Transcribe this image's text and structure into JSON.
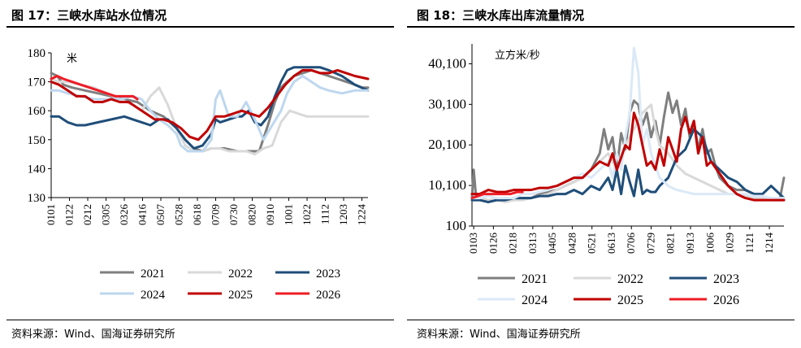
{
  "left_panel": {
    "title": "图 17：三峡水库站水位情况",
    "source": "资料来源：Wind、国海证券研究所",
    "chart_data": {
      "type": "line",
      "ylabel": "米",
      "ylim": [
        130,
        180
      ],
      "yticks": [
        130,
        140,
        150,
        160,
        170,
        180
      ],
      "xlim": [
        1,
        365
      ],
      "xtick_labels": [
        "0101",
        "0122",
        "0212",
        "0305",
        "0326",
        "0416",
        "0507",
        "0528",
        "0618",
        "0709",
        "0730",
        "0820",
        "0910",
        "1001",
        "1022",
        "1112",
        "1203",
        "1224"
      ],
      "xtick_days": [
        1,
        22,
        43,
        64,
        85,
        106,
        127,
        148,
        169,
        190,
        211,
        232,
        253,
        274,
        295,
        316,
        337,
        358
      ],
      "legend_position": "bottom",
      "grid": false,
      "series": [
        {
          "name": "2021",
          "color": "#7f7f7f",
          "width": 3,
          "x": [
            1,
            8,
            15,
            25,
            40,
            55,
            70,
            85,
            100,
            115,
            130,
            145,
            155,
            165,
            175,
            185,
            200,
            215,
            230,
            240,
            250,
            258,
            265,
            272,
            280,
            290,
            300,
            310,
            320,
            330,
            340,
            350,
            358,
            365
          ],
          "y": [
            173,
            172,
            169,
            168,
            167,
            166,
            165,
            164,
            163,
            160,
            158,
            154,
            150,
            147,
            146,
            147,
            147,
            146,
            146,
            146,
            155,
            163,
            168,
            170,
            172,
            173,
            174,
            173,
            172,
            171,
            170,
            169,
            168,
            168
          ]
        },
        {
          "name": "2022",
          "color": "#d9d9d9",
          "width": 3,
          "x": [
            1,
            10,
            20,
            35,
            50,
            65,
            80,
            95,
            105,
            115,
            125,
            135,
            145,
            155,
            165,
            175,
            185,
            195,
            205,
            215,
            225,
            235,
            245,
            255,
            265,
            275,
            285,
            295,
            305,
            320,
            335,
            350,
            365
          ],
          "y": [
            171,
            170,
            170,
            169,
            168,
            166,
            164,
            162,
            160,
            165,
            168,
            162,
            154,
            148,
            146,
            146,
            147,
            147,
            146,
            146,
            146,
            145,
            147,
            148,
            156,
            160,
            159,
            158,
            158,
            158,
            158,
            158,
            158
          ]
        },
        {
          "name": "2023",
          "color": "#1f4e79",
          "width": 3,
          "x": [
            1,
            10,
            15,
            20,
            30,
            40,
            55,
            70,
            85,
            95,
            105,
            115,
            125,
            135,
            145,
            155,
            165,
            175,
            185,
            190,
            195,
            205,
            215,
            220,
            228,
            235,
            242,
            250,
            258,
            265,
            272,
            280,
            290,
            300,
            310,
            320,
            335,
            350,
            365
          ],
          "y": [
            158,
            158,
            157,
            156,
            155,
            155,
            156,
            157,
            158,
            157,
            156,
            155,
            157,
            157,
            154,
            150,
            147,
            148,
            152,
            157,
            156,
            157,
            158,
            158,
            160,
            156,
            155,
            158,
            165,
            170,
            174,
            175,
            175,
            175,
            175,
            174,
            172,
            169,
            167
          ]
        },
        {
          "name": "2024",
          "color": "#bdd7ee",
          "width": 3,
          "x": [
            1,
            10,
            20,
            35,
            50,
            65,
            80,
            95,
            105,
            115,
            125,
            135,
            145,
            150,
            158,
            165,
            175,
            185,
            190,
            195,
            205,
            215,
            225,
            235,
            245,
            255,
            265,
            272,
            280,
            290,
            300,
            310,
            320,
            335,
            350,
            365
          ],
          "y": [
            167,
            167,
            166,
            165,
            164,
            164,
            164,
            165,
            164,
            160,
            157,
            155,
            152,
            148,
            146,
            146,
            146,
            150,
            164,
            167,
            158,
            158,
            163,
            157,
            150,
            155,
            160,
            166,
            170,
            172,
            170,
            168,
            167,
            166,
            167,
            167
          ]
        },
        {
          "name": "2025",
          "color": "#c00000",
          "width": 3,
          "x": [
            1,
            10,
            20,
            30,
            40,
            50,
            60,
            70,
            80,
            90,
            100,
            110,
            120,
            130,
            140,
            150,
            160,
            170,
            180,
            190,
            200,
            210,
            220,
            230,
            240,
            250,
            260,
            270,
            280,
            290,
            300,
            310,
            320,
            330,
            340,
            350,
            365
          ],
          "y": [
            170,
            169,
            167,
            165,
            165,
            163,
            163,
            164,
            163,
            163,
            161,
            159,
            157,
            157,
            156,
            154,
            151,
            150,
            153,
            158,
            158,
            159,
            160,
            159,
            158,
            161,
            165,
            169,
            172,
            174,
            174,
            173,
            173,
            174,
            173,
            172,
            171
          ]
        },
        {
          "name": "2026",
          "color": "#ee1c25",
          "width": 3,
          "x": [
            1,
            8,
            15,
            25,
            35,
            45,
            55,
            65,
            75,
            85,
            95,
            100
          ],
          "y": [
            171,
            172,
            171,
            170,
            169,
            168,
            167,
            166,
            165,
            165,
            165,
            164
          ]
        }
      ]
    }
  },
  "right_panel": {
    "title": "图 18：三峡水库出库流量情况",
    "source": "资料来源：Wind、国海证券研究所",
    "chart_data": {
      "type": "line",
      "ylabel": "立方米/秒",
      "ylim": [
        100,
        45000
      ],
      "yticks": [
        100,
        10100,
        20100,
        30100,
        40100
      ],
      "ytick_labels": [
        "100",
        "10,100",
        "20,100",
        "30,100",
        "40,100"
      ],
      "xlim": [
        1,
        365
      ],
      "xtick_labels": [
        "0103",
        "0126",
        "0218",
        "0313",
        "0405",
        "0428",
        "0521",
        "0613",
        "0706",
        "0729",
        "0821",
        "0913",
        "1006",
        "1029",
        "1121",
        "1214"
      ],
      "xtick_days": [
        3,
        26,
        49,
        72,
        95,
        118,
        141,
        164,
        187,
        210,
        233,
        256,
        279,
        302,
        325,
        348
      ],
      "legend_position": "bottom",
      "grid": false,
      "series": [
        {
          "name": "2021",
          "color": "#7f7f7f",
          "width": 3,
          "x": [
            1,
            3,
            6,
            10,
            20,
            30,
            40,
            50,
            60,
            70,
            80,
            90,
            100,
            110,
            120,
            130,
            140,
            150,
            155,
            160,
            165,
            170,
            175,
            180,
            185,
            190,
            195,
            200,
            205,
            210,
            215,
            220,
            225,
            230,
            235,
            240,
            245,
            250,
            255,
            260,
            265,
            270,
            275,
            280,
            285,
            290,
            300,
            310,
            320,
            330,
            340,
            350,
            360,
            365
          ],
          "y": [
            7000,
            14000,
            6500,
            7000,
            6500,
            6500,
            7000,
            6500,
            7000,
            7000,
            8000,
            8500,
            9000,
            10000,
            11000,
            12000,
            14000,
            18000,
            24000,
            19000,
            22000,
            14000,
            23000,
            19000,
            28000,
            31000,
            30000,
            25000,
            28000,
            22000,
            26000,
            20000,
            27000,
            33000,
            28000,
            31000,
            25000,
            29000,
            22000,
            26000,
            19000,
            24000,
            18000,
            19000,
            15000,
            12000,
            10000,
            9000,
            9000,
            8000,
            7000,
            7000,
            6500,
            12000
          ]
        },
        {
          "name": "2022",
          "color": "#d9d9d9",
          "width": 3,
          "x": [
            1,
            10,
            20,
            30,
            40,
            50,
            60,
            70,
            80,
            90,
            100,
            110,
            120,
            130,
            140,
            150,
            160,
            170,
            180,
            190,
            200,
            210,
            215,
            220,
            230,
            240,
            250,
            260,
            270,
            280,
            290,
            300,
            310,
            320,
            330,
            340,
            350,
            365
          ],
          "y": [
            7000,
            7000,
            6500,
            6500,
            6000,
            6500,
            6500,
            7000,
            7500,
            8000,
            9000,
            10000,
            11000,
            12000,
            14000,
            16000,
            18000,
            14000,
            20000,
            24000,
            28000,
            30000,
            24000,
            20000,
            18000,
            15000,
            13000,
            12000,
            11000,
            10000,
            9000,
            8000,
            8000,
            7500,
            7000,
            7000,
            6500,
            6500
          ]
        },
        {
          "name": "2023",
          "color": "#1f4e79",
          "width": 3,
          "x": [
            1,
            10,
            20,
            30,
            40,
            50,
            60,
            70,
            80,
            90,
            100,
            110,
            120,
            130,
            140,
            150,
            160,
            165,
            170,
            175,
            180,
            185,
            190,
            195,
            200,
            205,
            210,
            215,
            220,
            230,
            240,
            250,
            260,
            270,
            280,
            290,
            300,
            310,
            320,
            330,
            340,
            350,
            355,
            360,
            365
          ],
          "y": [
            6500,
            6500,
            6000,
            6500,
            6500,
            7000,
            7000,
            7000,
            7500,
            7500,
            8000,
            8000,
            9000,
            8000,
            10000,
            9000,
            12000,
            9000,
            14000,
            8000,
            15000,
            11000,
            7500,
            14000,
            8000,
            9000,
            8500,
            8500,
            10000,
            12000,
            17000,
            19000,
            24000,
            22000,
            16000,
            14000,
            12000,
            11000,
            9000,
            8000,
            8000,
            10000,
            9000,
            8000,
            7000
          ]
        },
        {
          "name": "2024",
          "color": "#dbe9f7",
          "width": 3,
          "x": [
            1,
            10,
            20,
            30,
            40,
            50,
            60,
            70,
            80,
            90,
            100,
            110,
            120,
            130,
            140,
            150,
            160,
            165,
            170,
            175,
            180,
            185,
            190,
            195,
            200,
            205,
            210,
            215,
            220,
            230,
            240,
            250,
            260,
            270,
            280,
            290,
            300,
            310,
            320,
            330,
            340,
            350,
            360,
            365
          ],
          "y": [
            7000,
            7000,
            7500,
            7000,
            7000,
            7000,
            8000,
            8000,
            8500,
            9000,
            10000,
            11000,
            12000,
            13000,
            12000,
            14000,
            16000,
            12000,
            18000,
            14000,
            22000,
            28000,
            44000,
            38000,
            20000,
            24000,
            18000,
            15000,
            12000,
            10000,
            9000,
            8500,
            8000,
            8000,
            8000,
            8000,
            8000,
            8000,
            8000,
            7500,
            7500,
            7000,
            7000,
            7000
          ]
        },
        {
          "name": "2025",
          "color": "#c00000",
          "width": 3,
          "x": [
            1,
            10,
            20,
            30,
            40,
            50,
            60,
            70,
            80,
            90,
            100,
            110,
            120,
            130,
            140,
            150,
            160,
            165,
            170,
            175,
            180,
            185,
            190,
            195,
            200,
            205,
            210,
            215,
            220,
            225,
            230,
            235,
            240,
            245,
            250,
            255,
            260,
            265,
            270,
            275,
            280,
            290,
            300,
            310,
            320,
            330,
            340,
            350,
            360,
            365
          ],
          "y": [
            8000,
            8000,
            9000,
            8500,
            8500,
            9000,
            9000,
            9000,
            9500,
            9500,
            10000,
            11000,
            12000,
            12000,
            14000,
            16000,
            15000,
            18000,
            14000,
            17000,
            20000,
            19000,
            28000,
            25000,
            20000,
            15000,
            16000,
            14000,
            19000,
            15000,
            22000,
            19000,
            16000,
            24000,
            27000,
            23000,
            26000,
            18000,
            22000,
            15000,
            16000,
            13000,
            10000,
            8000,
            7000,
            6500,
            6500,
            6500,
            6500,
            6500
          ]
        },
        {
          "name": "2026",
          "color": "#ee1c25",
          "width": 3,
          "x": [
            1,
            8,
            15,
            22,
            30,
            38,
            46,
            54,
            60
          ],
          "y": [
            7000,
            7500,
            8000,
            8000,
            8000,
            8000,
            8000,
            8500,
            8500
          ]
        }
      ]
    }
  }
}
